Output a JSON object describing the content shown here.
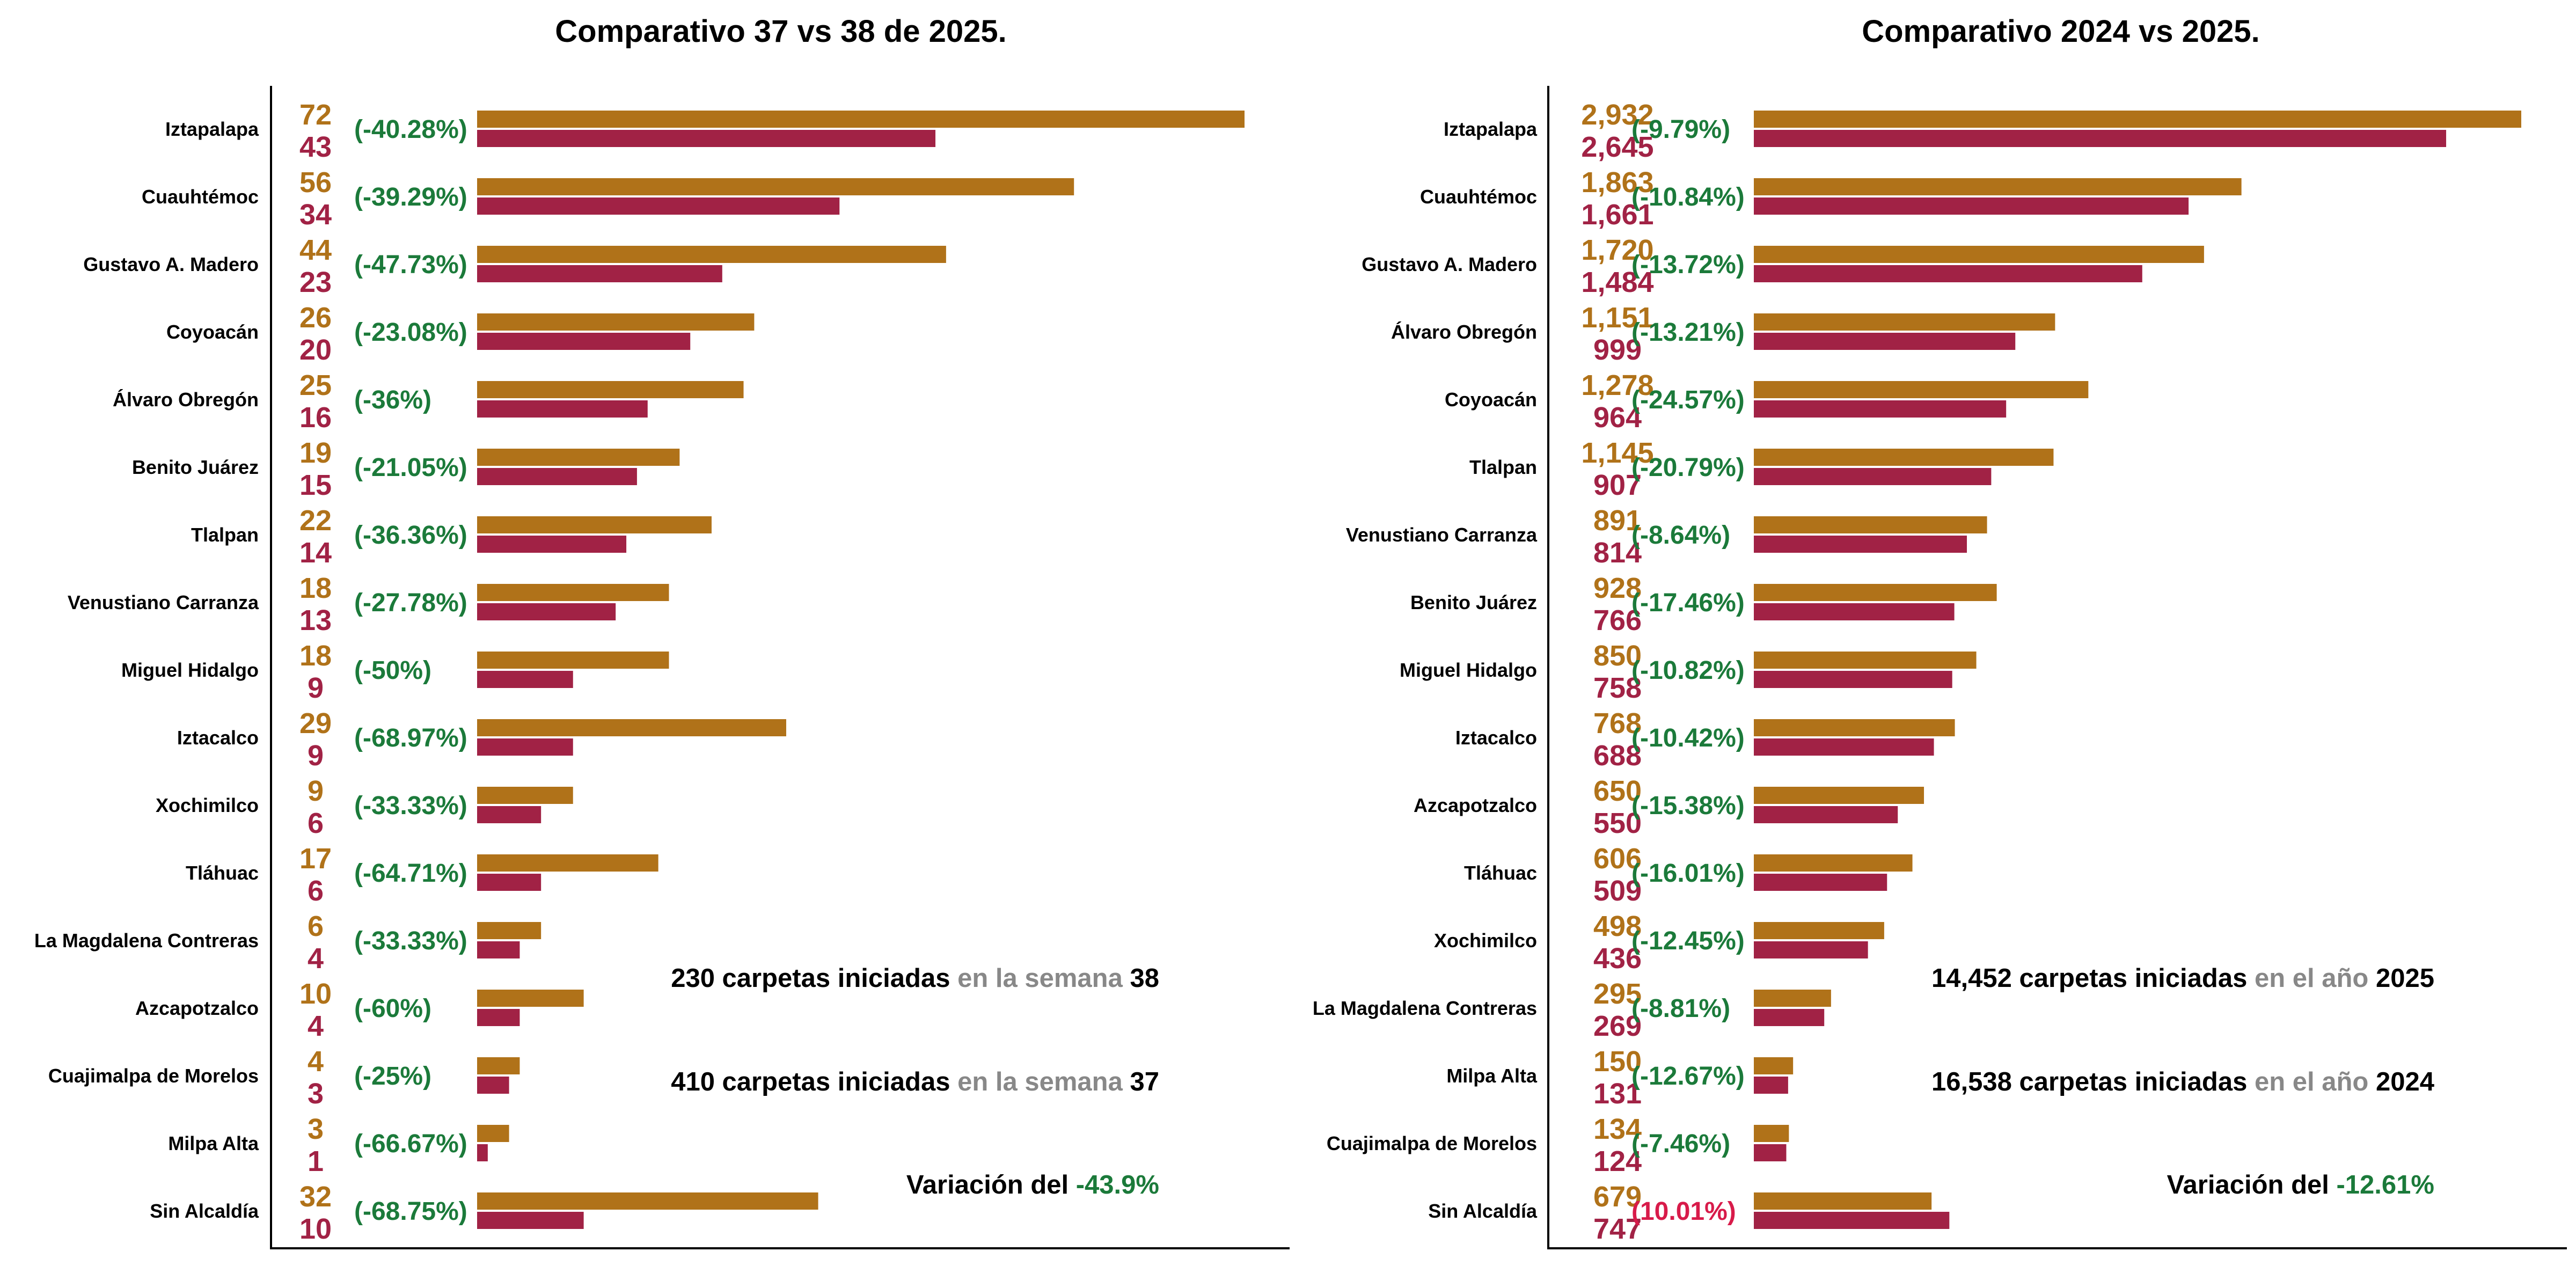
{
  "colors": {
    "prev": "#B07219",
    "curr": "#A12245",
    "decrease": "#1B7A3A",
    "increase": "#D81B4A",
    "muted": "#888888",
    "text": "#000000"
  },
  "chart_data": [
    {
      "type": "bar",
      "orientation": "horizontal",
      "title": "Comparativo 37  vs 38 de 2025.",
      "series": [
        {
          "name": "",
          "values": [
            72,
            56,
            44,
            26,
            25,
            19,
            22,
            18,
            18,
            29,
            9,
            17,
            6,
            10,
            4,
            3,
            32
          ]
        },
        {
          "name": "",
          "values": [
            43,
            34,
            23,
            20,
            16,
            15,
            14,
            13,
            9,
            9,
            6,
            6,
            4,
            4,
            3,
            1,
            10
          ]
        }
      ],
      "categories": [
        "Iztapalapa",
        "Cuauhtémoc",
        "Gustavo A. Madero",
        "Coyoacán",
        "Álvaro Obregón",
        "Benito Juárez",
        "Tlalpan",
        "Venustiano Carranza",
        "Miguel Hidalgo",
        "Iztacalco",
        "Xochimilco",
        "Tláhuac",
        "La Magdalena Contreras",
        "Azcapotzalco",
        "Cuajimalpa de Morelos",
        "Milpa Alta",
        "Sin Alcaldía"
      ],
      "prev_labels": [
        "72",
        "56",
        "44",
        "26",
        "25",
        "19",
        "22",
        "18",
        "18",
        "29",
        "9",
        "17",
        "6",
        "10",
        "4",
        "3",
        "32"
      ],
      "curr_labels": [
        "43",
        "34",
        "23",
        "20",
        "16",
        "15",
        "14",
        "13",
        "9",
        "9",
        "6",
        "6",
        "4",
        "4",
        "3",
        "1",
        "10"
      ],
      "pct_labels": [
        "(-40.28%)",
        "(-39.29%)",
        "(-47.73%)",
        "(-23.08%)",
        "(-36%)",
        "(-21.05%)",
        "(-36.36%)",
        "(-27.78%)",
        "(-50%)",
        "(-68.97%)",
        "(-33.33%)",
        "(-64.71%)",
        "(-33.33%)",
        "(-60%)",
        "(-25%)",
        "(-66.67%)",
        "(-68.75%)"
      ],
      "xlim": [
        0,
        72
      ],
      "annotations": {
        "line1": {
          "a": "230 carpetas iniciadas",
          "b": " en la semana ",
          "c": "38"
        },
        "line2": {
          "a": "410 carpetas iniciadas",
          "b": " en la semana ",
          "c": "37"
        },
        "line3": {
          "a": "Variación del ",
          "b": "-43.9%"
        }
      }
    },
    {
      "type": "bar",
      "orientation": "horizontal",
      "title": "Comparativo 2024 vs 2025.",
      "series": [
        {
          "name": "",
          "values": [
            2932,
            1863,
            1720,
            1151,
            1278,
            1145,
            891,
            928,
            850,
            768,
            650,
            606,
            498,
            295,
            150,
            134,
            679
          ]
        },
        {
          "name": "",
          "values": [
            2645,
            1661,
            1484,
            999,
            964,
            907,
            814,
            766,
            758,
            688,
            550,
            509,
            436,
            269,
            131,
            124,
            747
          ]
        }
      ],
      "categories": [
        "Iztapalapa",
        "Cuauhtémoc",
        "Gustavo A. Madero",
        "Álvaro Obregón",
        "Coyoacán",
        "Tlalpan",
        "Venustiano Carranza",
        "Benito Juárez",
        "Miguel Hidalgo",
        "Iztacalco",
        "Azcapotzalco",
        "Tláhuac",
        "Xochimilco",
        "La Magdalena Contreras",
        "Milpa Alta",
        "Cuajimalpa de Morelos",
        "Sin Alcaldía"
      ],
      "prev_labels": [
        "2,932",
        "1,863",
        "1,720",
        "1,151",
        "1,278",
        "1,145",
        "891",
        "928",
        "850",
        "768",
        "650",
        "606",
        "498",
        "295",
        "150",
        "134",
        "679"
      ],
      "curr_labels": [
        "2,645",
        "1,661",
        "1,484",
        "999",
        "964",
        "907",
        "814",
        "766",
        "758",
        "688",
        "550",
        "509",
        "436",
        "269",
        "131",
        "124",
        "747"
      ],
      "pct_labels": [
        "(-9.79%)",
        "(-10.84%)",
        "(-13.72%)",
        "(-13.21%)",
        "(-24.57%)",
        "(-20.79%)",
        "(-8.64%)",
        "(-17.46%)",
        "(-10.82%)",
        "(-10.42%)",
        "(-15.38%)",
        "(-16.01%)",
        "(-12.45%)",
        "(-8.81%)",
        "(-12.67%)",
        "(-7.46%)",
        "(10.01%)"
      ],
      "xlim": [
        0,
        2932
      ],
      "annotations": {
        "line1": {
          "a": "14,452 carpetas iniciadas",
          "b": " en el año ",
          "c": "2025"
        },
        "line2": {
          "a": "16,538 carpetas iniciadas",
          "b": " en el año ",
          "c": "2024"
        },
        "line3": {
          "a": "Variación del ",
          "b": "-12.61%"
        }
      }
    }
  ]
}
